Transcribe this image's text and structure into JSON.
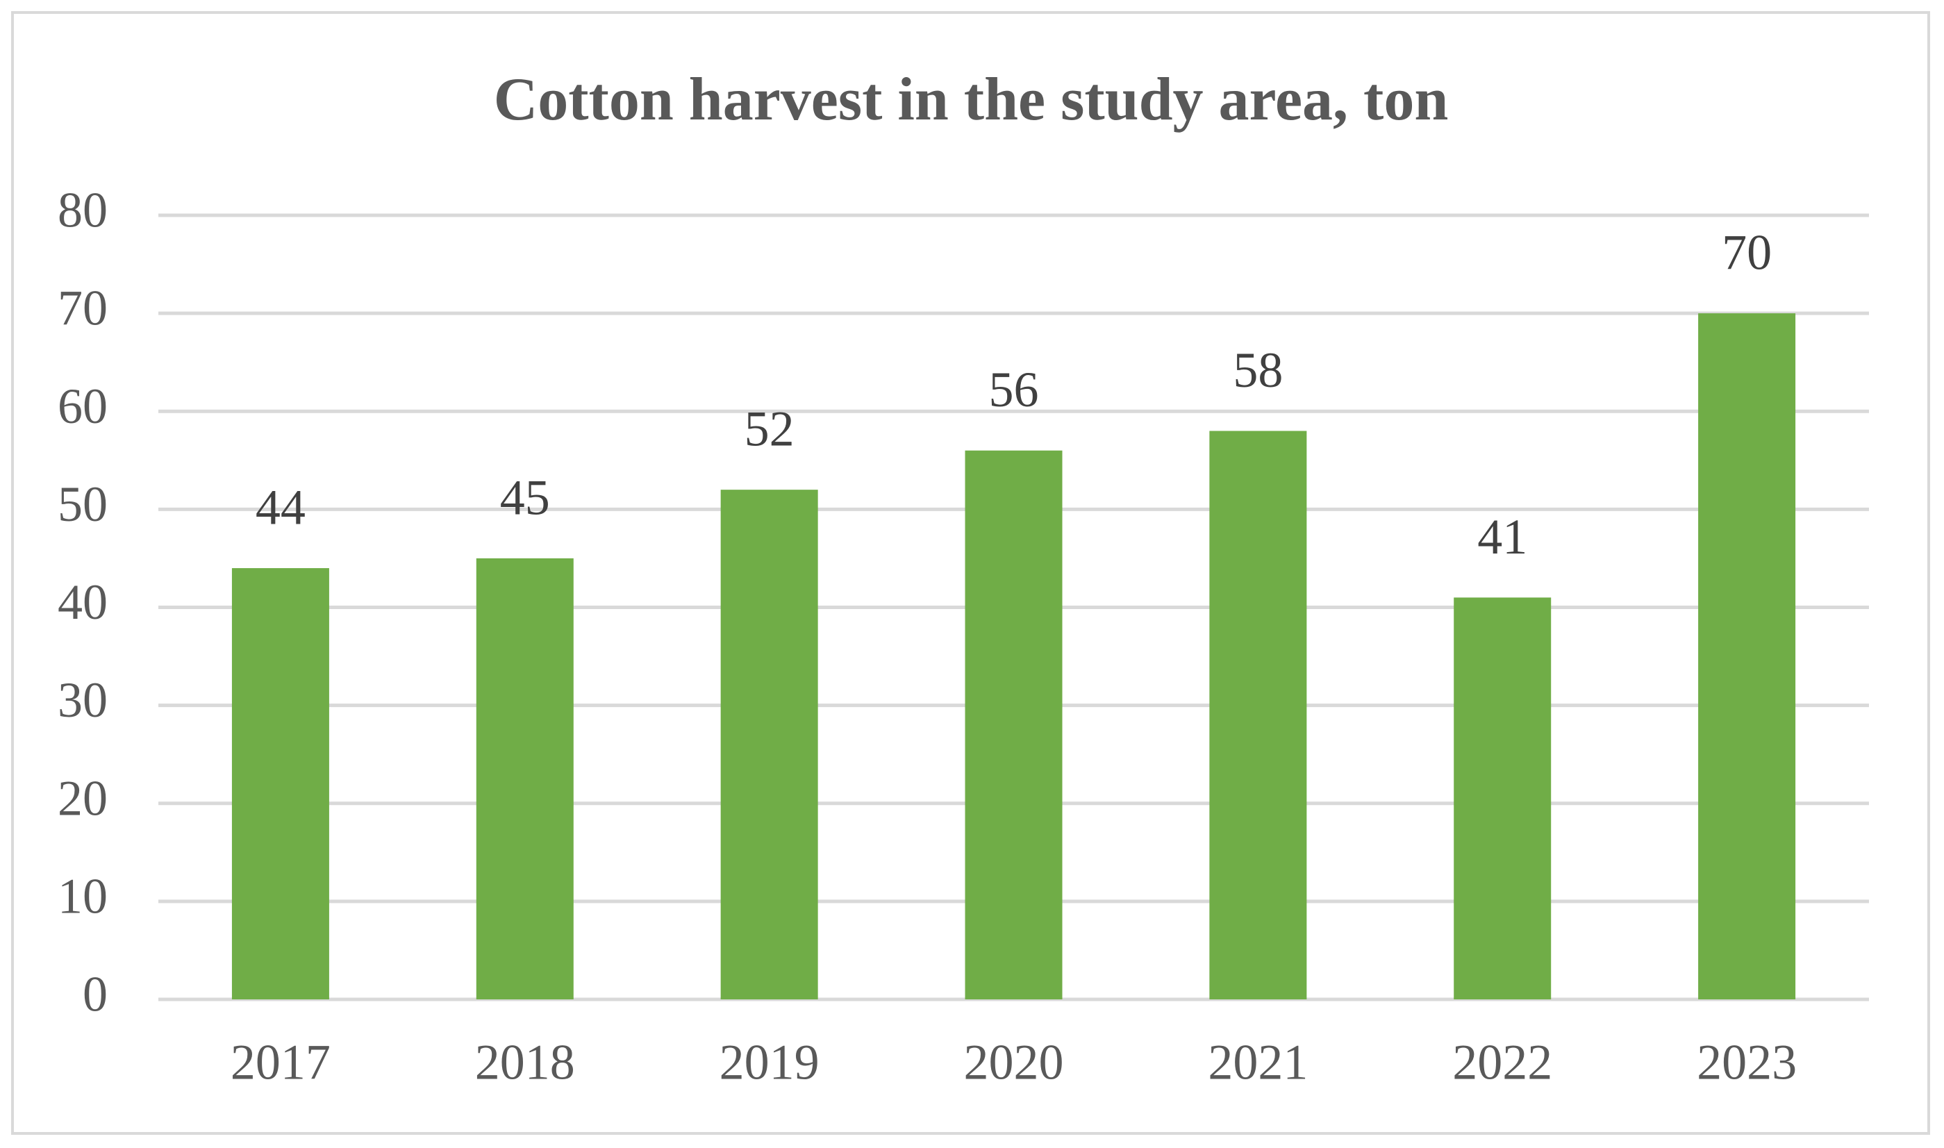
{
  "chart_data": {
    "type": "bar",
    "title": "Cotton harvest in the study area, ton",
    "categories": [
      "2017",
      "2018",
      "2019",
      "2020",
      "2021",
      "2022",
      "2023"
    ],
    "values": [
      44,
      45,
      52,
      56,
      58,
      41,
      70
    ],
    "color": "#70ad47",
    "ylim": [
      0,
      80
    ],
    "yticks": [
      0,
      10,
      20,
      30,
      40,
      50,
      60,
      70,
      80
    ],
    "grid": true
  }
}
